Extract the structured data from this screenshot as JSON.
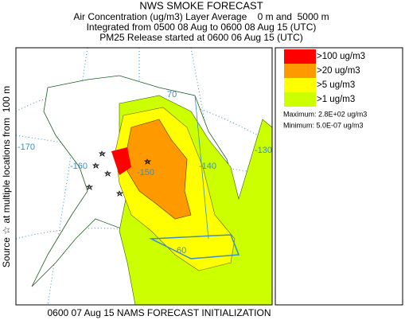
{
  "header": {
    "title": "NWS SMOKE FORECAST",
    "subtitle": "Air Concentration (ug/m3) Layer Average    0 m and  5000 m",
    "integration": "Integrated from 0500 08 Aug to 0600 08 Aug 15 (UTC)",
    "release": "PM25 Release started at 0600 06 Aug 15 (UTC)"
  },
  "side_label": "Source ☆ at multiple locations from  100 m",
  "footer": "0600 07 Aug 15 NAMS FORECAST INITIALIZATION",
  "map": {
    "labels": [
      "70",
      "-170",
      "-160",
      "-150",
      "-140",
      "-130",
      "60"
    ]
  },
  "legend": {
    "items": [
      {
        "label": ">100 ug/m3",
        "color": "#ff0000"
      },
      {
        "label": ">20 ug/m3",
        "color": "#ff9900"
      },
      {
        "label": ">5 ug/m3",
        "color": "#ffff00"
      },
      {
        "label": ">1 ug/m3",
        "color": "#ccff00"
      }
    ],
    "maximum": "Maximum: 2.8E+02 ug/m3",
    "minimum": "Minimum: 5.0E-07 ug/m3"
  }
}
